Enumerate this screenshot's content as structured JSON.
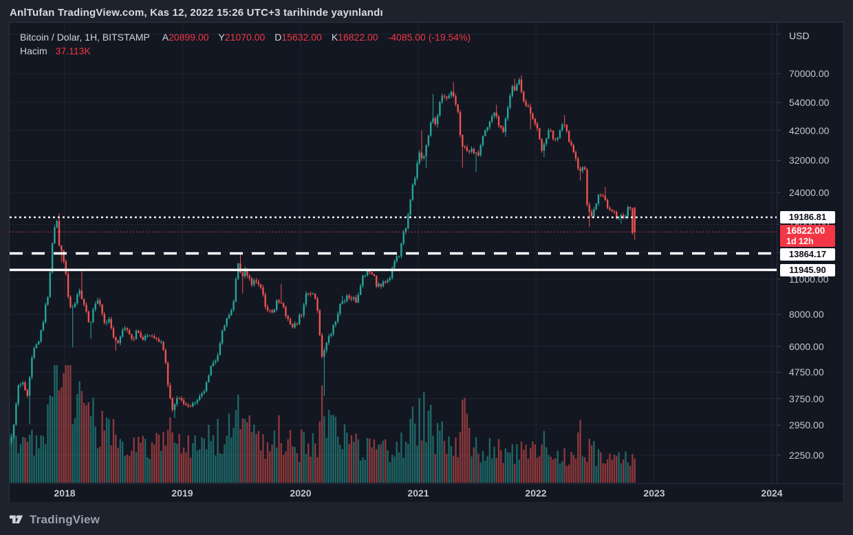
{
  "attribution": "AnlTufan TradingView.com, Kas 12, 2022 15:26 UTC+3 tarihinde yayınlandı",
  "watermark": {
    "brand": "TradingView"
  },
  "legend": {
    "title": "Bitcoin / Dolar, 1H, BITSTAMP",
    "ohlc": [
      {
        "label": "A",
        "value": "20899.00"
      },
      {
        "label": "Y",
        "value": "21070.00"
      },
      {
        "label": "D",
        "value": "15632.00"
      },
      {
        "label": "K",
        "value": "16822.00"
      }
    ],
    "change": "-4085.00 (-19.54%)",
    "volume_label": "Hacim",
    "volume_value": "37.113K"
  },
  "colors": {
    "bg_outer": "#1e222d",
    "bg_panel": "#131722",
    "border": "#2e3342",
    "grid": "rgba(255,255,255,0.06)",
    "axis_tick": "#3a4050",
    "up": "#26a69a",
    "down": "#ef5350",
    "vol_up": "rgba(38,166,154,0.55)",
    "vol_down": "rgba(239,83,80,0.55)",
    "text_red": "#f23645",
    "white_line": "#ffffff"
  },
  "chart_data": {
    "type": "candlestick",
    "title": "Bitcoin / Dolar, 1H, BITSTAMP",
    "exchange": "BITSTAMP",
    "scale": "log",
    "legend_position": "top-left",
    "y_axis": {
      "unit": "USD",
      "ticks": [
        {
          "v": 70000,
          "label": "70000.00"
        },
        {
          "v": 54000,
          "label": "54000.00"
        },
        {
          "v": 42000,
          "label": "42000.00"
        },
        {
          "v": 32000,
          "label": "32000.00"
        },
        {
          "v": 24000,
          "label": "24000.00"
        },
        {
          "v": 18000,
          "label": "18000.00"
        },
        {
          "v": 11000,
          "label": "11000.00"
        },
        {
          "v": 8000,
          "label": "8000.00"
        },
        {
          "v": 6000,
          "label": "6000.00"
        },
        {
          "v": 4750,
          "label": "4750.00"
        },
        {
          "v": 3750,
          "label": "3750.00"
        },
        {
          "v": 2950,
          "label": "2950.00"
        },
        {
          "v": 2250,
          "label": "2250.00"
        }
      ],
      "grid_prices": [
        100000,
        70000,
        54000,
        42000,
        32000,
        24000,
        18000,
        14000,
        11000,
        8000,
        6000,
        4750,
        3750,
        2950,
        2250
      ]
    },
    "x_axis": {
      "ticks": [
        "2018",
        "2019",
        "2020",
        "2021",
        "2022",
        "2023",
        "2024"
      ],
      "years": [
        2018,
        2019,
        2020,
        2021,
        2022,
        2023,
        2024
      ]
    },
    "price_lines": [
      {
        "price": 19186.81,
        "label": "19186.81",
        "style": "dotted",
        "color": "#ffffff",
        "badge_bg": "#ffffff",
        "badge_fg": "#0c0f17"
      },
      {
        "price": 16822.0,
        "label": "16822.00",
        "sublabel": "1d 12h",
        "style": "dotted-fine",
        "color": "#f23645",
        "badge_bg": "#f23645",
        "badge_fg": "#ffffff"
      },
      {
        "price": 13864.17,
        "label": "13864.17",
        "style": "dashed",
        "color": "#ffffff",
        "badge_bg": "#ffffff",
        "badge_fg": "#0c0f17"
      },
      {
        "price": 11945.9,
        "label": "11945.90",
        "style": "solid",
        "color": "#ffffff",
        "badge_bg": "#ffffff",
        "badge_fg": "#0c0f17"
      }
    ],
    "last_bar": {
      "open": 20899.0,
      "high": 21070.0,
      "low": 15632.0,
      "close": 16822.0,
      "change": -4085.0,
      "change_pct": -19.54,
      "volume": "37.113K",
      "countdown": "1d 12h"
    },
    "bars_per_year": 52,
    "anchor_format": "[year_decimal, close_usd, relative_volume_0to1, spike_high_usd|null, spike_low_usd|null]",
    "anchors": [
      [
        2017.53,
        2500,
        0.3,
        null,
        null
      ],
      [
        2017.58,
        2750,
        0.33,
        null,
        null
      ],
      [
        2017.62,
        4100,
        0.36,
        null,
        null
      ],
      [
        2017.66,
        4350,
        0.34,
        null,
        null
      ],
      [
        2017.7,
        3800,
        0.38,
        null,
        2980
      ],
      [
        2017.75,
        5700,
        0.4,
        null,
        null
      ],
      [
        2017.79,
        6150,
        0.42,
        null,
        null
      ],
      [
        2017.83,
        7300,
        0.46,
        null,
        null
      ],
      [
        2017.88,
        9800,
        0.62,
        null,
        null
      ],
      [
        2017.92,
        16500,
        0.82,
        null,
        null
      ],
      [
        2017.953,
        19000,
        0.92,
        19891,
        null
      ],
      [
        2017.975,
        14300,
        0.95,
        null,
        12800
      ],
      [
        2018.005,
        13600,
        0.88,
        null,
        null
      ],
      [
        2018.03,
        11300,
        0.96,
        null,
        null
      ],
      [
        2018.06,
        8300,
        1.0,
        null,
        5950
      ],
      [
        2018.1,
        8600,
        0.8,
        null,
        null
      ],
      [
        2018.14,
        10300,
        0.66,
        11780,
        null
      ],
      [
        2018.19,
        8600,
        0.58,
        null,
        null
      ],
      [
        2018.23,
        7100,
        0.55,
        null,
        6430
      ],
      [
        2018.27,
        8600,
        0.5,
        null,
        null
      ],
      [
        2018.31,
        9300,
        0.48,
        null,
        null
      ],
      [
        2018.35,
        7600,
        0.46,
        null,
        null
      ],
      [
        2018.4,
        7500,
        0.44,
        null,
        null
      ],
      [
        2018.44,
        6400,
        0.46,
        null,
        5770
      ],
      [
        2018.48,
        6150,
        0.42,
        null,
        null
      ],
      [
        2018.52,
        7350,
        0.4,
        null,
        null
      ],
      [
        2018.56,
        6700,
        0.38,
        null,
        null
      ],
      [
        2018.6,
        6300,
        0.36,
        null,
        null
      ],
      [
        2018.64,
        7000,
        0.35,
        null,
        null
      ],
      [
        2018.68,
        6450,
        0.33,
        null,
        null
      ],
      [
        2018.73,
        6500,
        0.31,
        null,
        null
      ],
      [
        2018.78,
        6450,
        0.3,
        null,
        null
      ],
      [
        2018.83,
        6350,
        0.3,
        null,
        null
      ],
      [
        2018.87,
        5500,
        0.48,
        null,
        null
      ],
      [
        2018.9,
        4050,
        0.64,
        null,
        null
      ],
      [
        2018.94,
        3350,
        0.56,
        null,
        3150
      ],
      [
        2018.98,
        3850,
        0.45,
        null,
        null
      ],
      [
        2019.02,
        3600,
        0.35,
        null,
        null
      ],
      [
        2019.08,
        3500,
        0.31,
        null,
        null
      ],
      [
        2019.14,
        3650,
        0.3,
        null,
        null
      ],
      [
        2019.2,
        3950,
        0.33,
        null,
        null
      ],
      [
        2019.26,
        5050,
        0.42,
        null,
        null
      ],
      [
        2019.31,
        5250,
        0.38,
        null,
        null
      ],
      [
        2019.36,
        7000,
        0.46,
        null,
        null
      ],
      [
        2019.41,
        8050,
        0.46,
        null,
        null
      ],
      [
        2019.45,
        8800,
        0.48,
        null,
        null
      ],
      [
        2019.4915,
        12900,
        0.56,
        13880,
        null
      ],
      [
        2019.52,
        10800,
        0.5,
        null,
        9650
      ],
      [
        2019.55,
        11900,
        0.44,
        null,
        null
      ],
      [
        2019.6,
        10500,
        0.4,
        null,
        null
      ],
      [
        2019.65,
        10800,
        0.36,
        null,
        null
      ],
      [
        2019.7,
        9600,
        0.34,
        null,
        null
      ],
      [
        2019.74,
        8150,
        0.4,
        null,
        null
      ],
      [
        2019.79,
        8250,
        0.34,
        null,
        null
      ],
      [
        2019.83,
        9250,
        0.42,
        10540,
        null
      ],
      [
        2019.88,
        8500,
        0.34,
        null,
        null
      ],
      [
        2019.92,
        7350,
        0.36,
        null,
        null
      ],
      [
        2019.97,
        7200,
        0.3,
        null,
        null
      ],
      [
        2020.03,
        8050,
        0.34,
        null,
        null
      ],
      [
        2020.08,
        9950,
        0.38,
        null,
        null
      ],
      [
        2020.12,
        9650,
        0.36,
        null,
        null
      ],
      [
        2020.16,
        8850,
        0.38,
        null,
        null
      ],
      [
        2020.203,
        5350,
        0.72,
        null,
        3850
      ],
      [
        2020.24,
        6250,
        0.52,
        null,
        null
      ],
      [
        2020.28,
        6850,
        0.42,
        null,
        null
      ],
      [
        2020.32,
        7550,
        0.4,
        null,
        null
      ],
      [
        2020.36,
        8950,
        0.42,
        9480,
        null
      ],
      [
        2020.41,
        9350,
        0.38,
        null,
        null
      ],
      [
        2020.45,
        9150,
        0.33,
        null,
        null
      ],
      [
        2020.5,
        9150,
        0.28,
        null,
        null
      ],
      [
        2020.54,
        11050,
        0.36,
        null,
        null
      ],
      [
        2020.58,
        11750,
        0.32,
        null,
        null
      ],
      [
        2020.63,
        11650,
        0.28,
        null,
        null
      ],
      [
        2020.67,
        10250,
        0.3,
        null,
        null
      ],
      [
        2020.72,
        10700,
        0.26,
        null,
        null
      ],
      [
        2020.77,
        10850,
        0.26,
        null,
        null
      ],
      [
        2020.81,
        13050,
        0.3,
        null,
        null
      ],
      [
        2020.86,
        13800,
        0.32,
        null,
        null
      ],
      [
        2020.89,
        16100,
        0.36,
        null,
        null
      ],
      [
        2020.93,
        18700,
        0.4,
        null,
        null
      ],
      [
        2020.96,
        23800,
        0.48,
        null,
        null
      ],
      [
        2021.0,
        29000,
        0.56,
        null,
        null
      ],
      [
        2021.025,
        33900,
        0.62,
        42000,
        null
      ],
      [
        2021.06,
        32100,
        0.55,
        null,
        29900
      ],
      [
        2021.1,
        38900,
        0.48,
        null,
        null
      ],
      [
        2021.13,
        47200,
        0.46,
        58300,
        null
      ],
      [
        2021.17,
        45100,
        0.42,
        null,
        43000
      ],
      [
        2021.21,
        55800,
        0.38,
        null,
        null
      ],
      [
        2021.25,
        57300,
        0.36,
        null,
        null
      ],
      [
        2021.299,
        58100,
        0.36,
        64800,
        null
      ],
      [
        2021.33,
        55900,
        0.36,
        null,
        null
      ],
      [
        2021.36,
        49100,
        0.4,
        null,
        null
      ],
      [
        2021.385,
        37300,
        0.62,
        null,
        30000
      ],
      [
        2021.42,
        35600,
        0.45,
        null,
        null
      ],
      [
        2021.46,
        35500,
        0.32,
        null,
        null
      ],
      [
        2021.5,
        33550,
        0.34,
        null,
        28800
      ],
      [
        2021.54,
        34250,
        0.28,
        null,
        null
      ],
      [
        2021.565,
        39850,
        0.3,
        null,
        null
      ],
      [
        2021.6,
        42800,
        0.28,
        null,
        null
      ],
      [
        2021.635,
        47100,
        0.26,
        null,
        null
      ],
      [
        2021.67,
        48800,
        0.26,
        52900,
        null
      ],
      [
        2021.71,
        43850,
        0.28,
        null,
        null
      ],
      [
        2021.735,
        41000,
        0.26,
        null,
        39600
      ],
      [
        2021.77,
        48150,
        0.26,
        null,
        null
      ],
      [
        2021.795,
        54950,
        0.26,
        null,
        null
      ],
      [
        2021.815,
        61350,
        0.28,
        66950,
        null
      ],
      [
        2021.85,
        61000,
        0.24,
        null,
        null
      ],
      [
        2021.876,
        65500,
        0.26,
        69000,
        null
      ],
      [
        2021.9,
        58000,
        0.28,
        null,
        null
      ],
      [
        2021.93,
        53700,
        0.26,
        null,
        null
      ],
      [
        2021.96,
        50450,
        0.26,
        null,
        42350
      ],
      [
        2022.0,
        46200,
        0.26,
        null,
        null
      ],
      [
        2022.035,
        41550,
        0.26,
        null,
        null
      ],
      [
        2022.065,
        35050,
        0.34,
        null,
        32950
      ],
      [
        2022.1,
        38500,
        0.28,
        null,
        null
      ],
      [
        2022.135,
        42400,
        0.24,
        null,
        null
      ],
      [
        2022.17,
        37700,
        0.24,
        null,
        null
      ],
      [
        2022.21,
        39450,
        0.22,
        null,
        null
      ],
      [
        2022.25,
        45550,
        0.24,
        48200,
        null
      ],
      [
        2022.29,
        39450,
        0.24,
        null,
        null
      ],
      [
        2022.33,
        36050,
        0.28,
        null,
        null
      ],
      [
        2022.375,
        30100,
        0.44,
        null,
        26700
      ],
      [
        2022.41,
        29500,
        0.34,
        null,
        null
      ],
      [
        2022.44,
        29050,
        0.3,
        null,
        null
      ],
      [
        2022.455,
        20500,
        0.42,
        null,
        17600
      ],
      [
        2022.49,
        19150,
        0.36,
        null,
        null
      ],
      [
        2022.52,
        21600,
        0.26,
        null,
        null
      ],
      [
        2022.555,
        23350,
        0.24,
        null,
        null
      ],
      [
        2022.59,
        23800,
        0.24,
        25200,
        null
      ],
      [
        2022.625,
        21350,
        0.22,
        null,
        null
      ],
      [
        2022.655,
        20050,
        0.22,
        null,
        null
      ],
      [
        2022.69,
        19800,
        0.22,
        null,
        null
      ],
      [
        2022.715,
        18850,
        0.26,
        null,
        18130
      ],
      [
        2022.75,
        19400,
        0.22,
        null,
        null
      ],
      [
        2022.775,
        19150,
        0.2,
        null,
        null
      ],
      [
        2022.8,
        20600,
        0.2,
        null,
        null
      ],
      [
        2022.82,
        20500,
        0.2,
        null,
        null
      ],
      [
        2022.8377,
        16822,
        0.21,
        null,
        null
      ]
    ]
  }
}
